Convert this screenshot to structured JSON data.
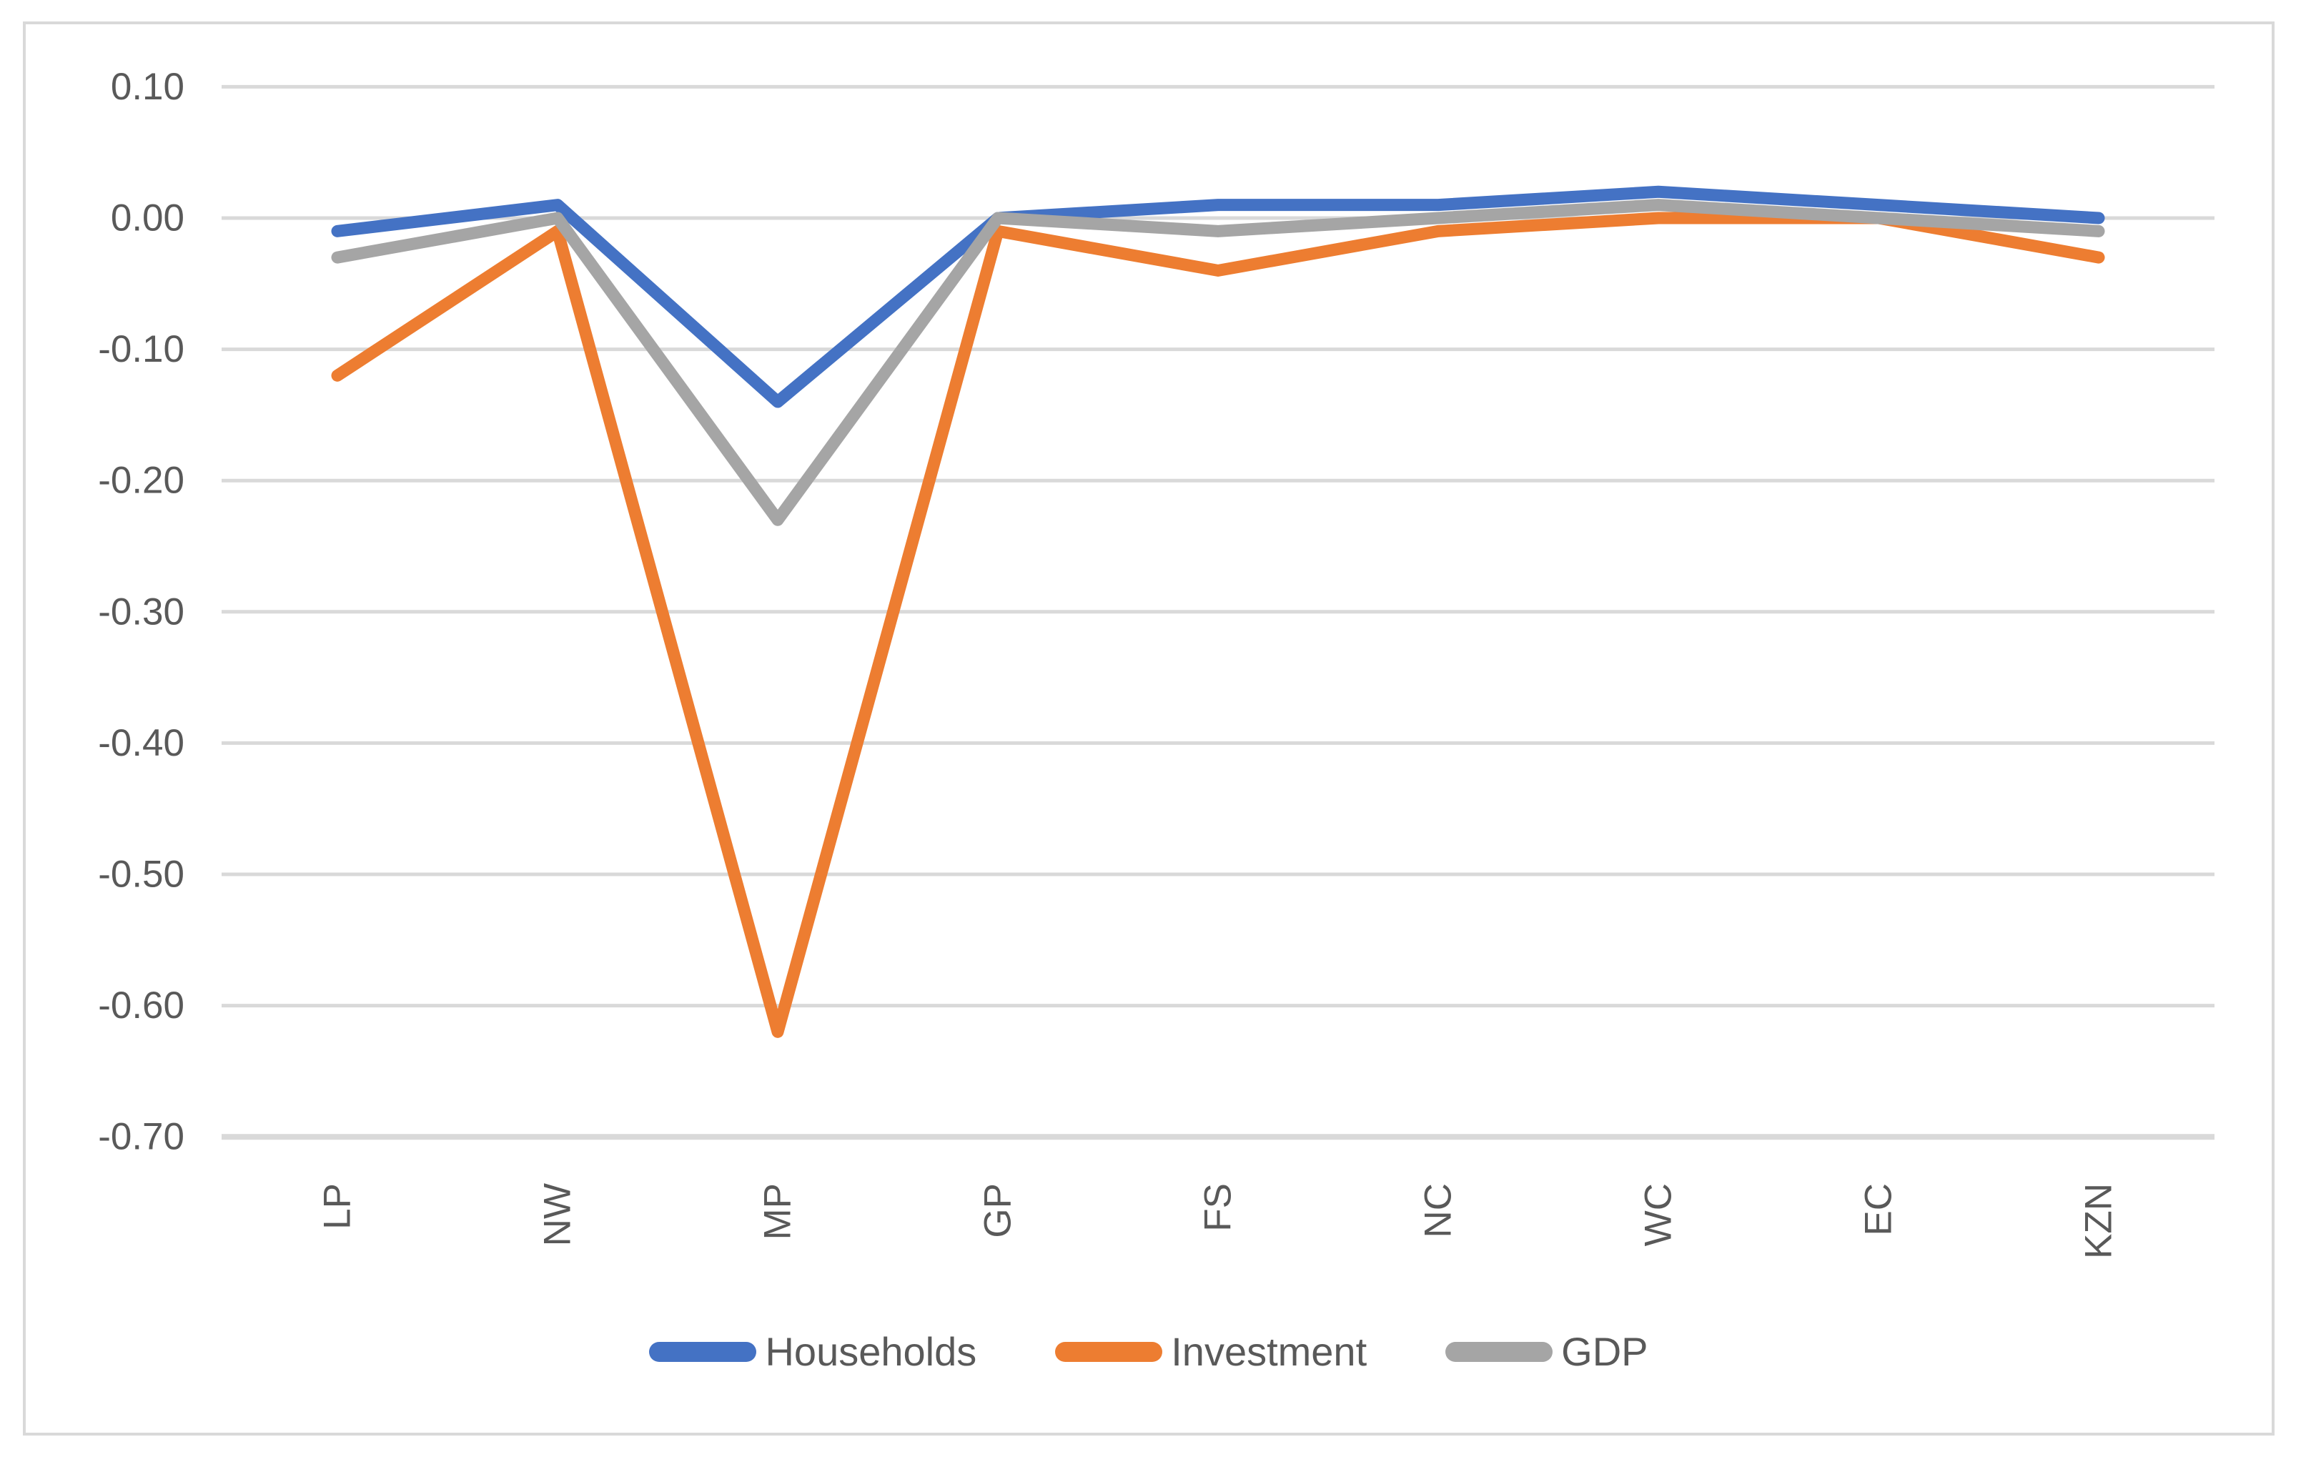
{
  "chart_data": {
    "type": "line",
    "title": "",
    "xlabel": "",
    "ylabel": "",
    "categories": [
      "LP",
      "NW",
      "MP",
      "GP",
      "FS",
      "NC",
      "WC",
      "EC",
      "KZN"
    ],
    "series": [
      {
        "name": "Households",
        "color": "#4472C4",
        "values": [
          -0.01,
          0.01,
          -0.14,
          0.0,
          0.01,
          0.01,
          0.02,
          0.01,
          0.0
        ]
      },
      {
        "name": "Investment",
        "color": "#ED7D31",
        "values": [
          -0.12,
          -0.01,
          -0.62,
          -0.01,
          -0.04,
          -0.01,
          0.0,
          0.0,
          -0.03
        ]
      },
      {
        "name": "GDP",
        "color": "#A5A5A5",
        "values": [
          -0.03,
          0.0,
          -0.23,
          0.0,
          -0.01,
          0.0,
          0.01,
          0.0,
          -0.01
        ]
      }
    ],
    "ylim": [
      -0.7,
      0.1
    ],
    "ytick_step": 0.1,
    "ytick_labels": [
      "0.10",
      "0.00",
      "-0.10",
      "-0.20",
      "-0.30",
      "-0.40",
      "-0.50",
      "-0.60",
      "-0.70"
    ],
    "grid": true,
    "legend_position": "bottom-center",
    "x_label_rotation_degrees": 90
  },
  "style": {
    "grid_color": "#D9D9D9",
    "frame_color": "#D9D9D9",
    "axis_text_color": "#595959",
    "background_color": "#FFFFFF"
  }
}
